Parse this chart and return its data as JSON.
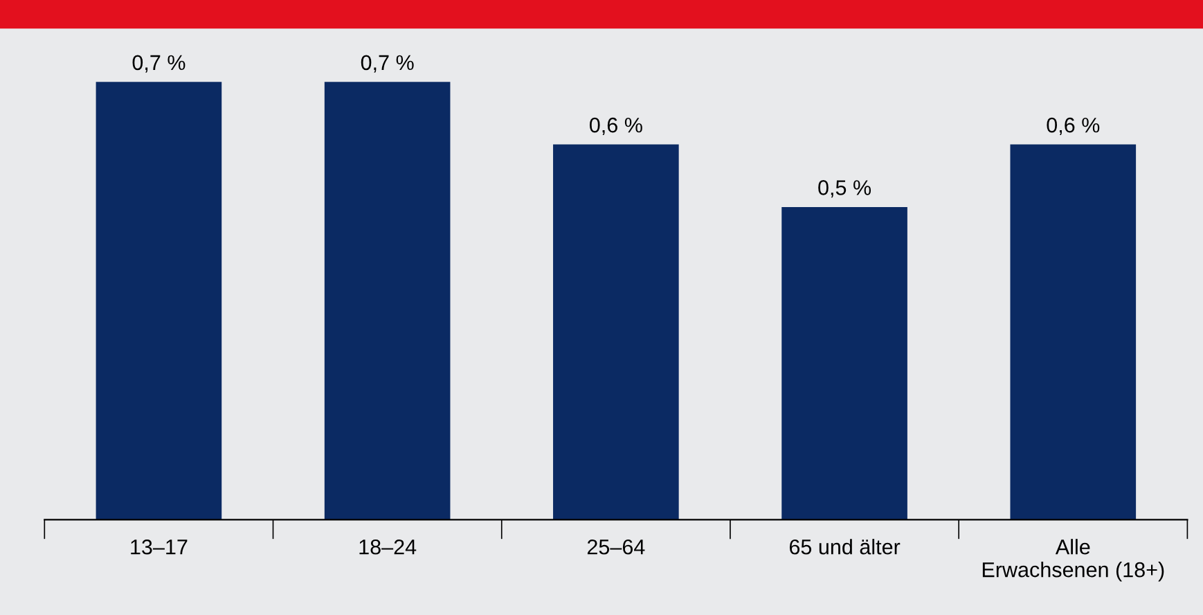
{
  "chart_data": {
    "type": "bar",
    "categories": [
      "13–17",
      "18–24",
      "25–64",
      "65 und älter",
      "Alle\nErwachsenen (18+)"
    ],
    "values": [
      0.7,
      0.7,
      0.6,
      0.5,
      0.6
    ],
    "value_labels": [
      "0,7 %",
      "0,7 %",
      "0,6 %",
      "0,5 %",
      "0,6 %"
    ],
    "color": "#0b2a63",
    "grid": false,
    "legend": false
  }
}
